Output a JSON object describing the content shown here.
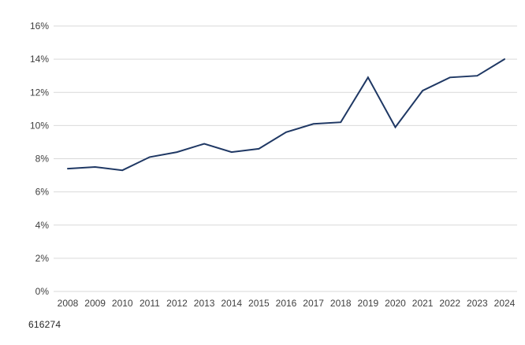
{
  "note": "616274",
  "colors": {
    "line": "#1f3864",
    "grid": "#d9d9d9",
    "axis_text": "#404040",
    "note_text": "#262626",
    "background": "#ffffff"
  },
  "chart_data": {
    "type": "line",
    "title": "",
    "xlabel": "",
    "ylabel": "",
    "x": [
      "2008",
      "2009",
      "2010",
      "2011",
      "2012",
      "2013",
      "2014",
      "2015",
      "2016",
      "2017",
      "2018",
      "2019",
      "2020",
      "2021",
      "2022",
      "2023",
      "2024"
    ],
    "series": [
      {
        "name": "share-percent",
        "values": [
          7.4,
          7.5,
          7.3,
          8.1,
          8.4,
          8.9,
          8.4,
          8.6,
          9.6,
          10.1,
          10.2,
          12.9,
          9.9,
          12.1,
          12.9,
          13.0,
          14.0
        ]
      }
    ],
    "ylim": [
      0,
      16
    ],
    "ytick_step": 2,
    "yticks": [
      "0%",
      "2%",
      "4%",
      "6%",
      "8%",
      "10%",
      "12%",
      "14%",
      "16%"
    ],
    "grid": "horizontal",
    "legend": "none"
  }
}
